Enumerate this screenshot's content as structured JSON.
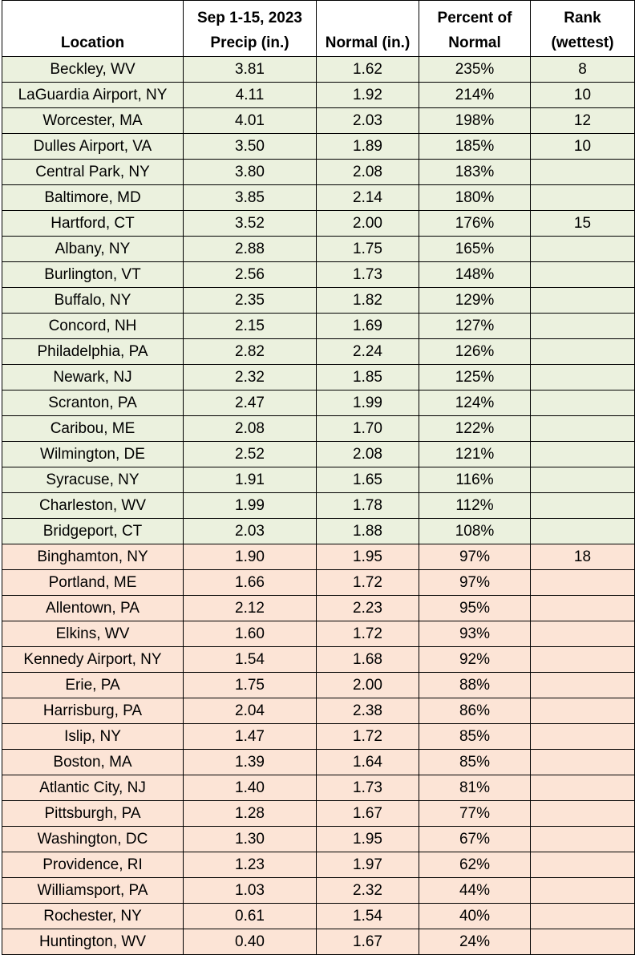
{
  "table": {
    "header": [
      [
        "Location"
      ],
      [
        "Sep 1-15, 2023",
        "Precip (in.)"
      ],
      [
        "Normal (in.)"
      ],
      [
        "Percent of",
        "Normal"
      ],
      [
        "Rank",
        "(wettest)"
      ]
    ],
    "rows": [
      [
        "Beckley, WV",
        "3.81",
        "1.62",
        "235%",
        "8"
      ],
      [
        "LaGuardia Airport, NY",
        "4.11",
        "1.92",
        "214%",
        "10"
      ],
      [
        "Worcester, MA",
        "4.01",
        "2.03",
        "198%",
        "12"
      ],
      [
        "Dulles Airport, VA",
        "3.50",
        "1.89",
        "185%",
        "10"
      ],
      [
        "Central Park, NY",
        "3.80",
        "2.08",
        "183%"
      ],
      [
        "Baltimore, MD",
        "3.85",
        "2.14",
        "180%"
      ],
      [
        "Hartford, CT",
        "3.52",
        "2.00",
        "176%",
        "15"
      ],
      [
        "Albany, NY",
        "2.88",
        "1.75",
        "165%"
      ],
      [
        "Burlington, VT",
        "2.56",
        "1.73",
        "148%"
      ],
      [
        "Buffalo, NY",
        "2.35",
        "1.82",
        "129%"
      ],
      [
        "Concord, NH",
        "2.15",
        "1.69",
        "127%"
      ],
      [
        "Philadelphia, PA",
        "2.82",
        "2.24",
        "126%"
      ],
      [
        "Newark, NJ",
        "2.32",
        "1.85",
        "125%"
      ],
      [
        "Scranton, PA",
        "2.47",
        "1.99",
        "124%"
      ],
      [
        "Caribou, ME",
        "2.08",
        "1.70",
        "122%"
      ],
      [
        "Wilmington, DE",
        "2.52",
        "2.08",
        "121%"
      ],
      [
        "Syracuse, NY",
        "1.91",
        "1.65",
        "116%"
      ],
      [
        "Charleston, WV",
        "1.99",
        "1.78",
        "112%"
      ],
      [
        "Bridgeport, CT",
        "2.03",
        "1.88",
        "108%"
      ],
      [
        "Binghamton, NY",
        "1.90",
        "1.95",
        "97%",
        "18"
      ],
      [
        "Portland, ME",
        "1.66",
        "1.72",
        "97%"
      ],
      [
        "Allentown, PA",
        "2.12",
        "2.23",
        "95%"
      ],
      [
        "Elkins, WV",
        "1.60",
        "1.72",
        "93%"
      ],
      [
        "Kennedy Airport, NY",
        "1.54",
        "1.68",
        "92%"
      ],
      [
        "Erie, PA",
        "1.75",
        "2.00",
        "88%"
      ],
      [
        "Harrisburg, PA",
        "2.04",
        "2.38",
        "86%"
      ],
      [
        "Islip, NY",
        "1.47",
        "1.72",
        "85%"
      ],
      [
        "Boston, MA",
        "1.39",
        "1.64",
        "85%"
      ],
      [
        "Atlantic City, NJ",
        "1.40",
        "1.73",
        "81%"
      ],
      [
        "Pittsburgh, PA",
        "1.28",
        "1.67",
        "77%"
      ],
      [
        "Washington, DC",
        "1.30",
        "1.95",
        "67%"
      ],
      [
        "Providence, RI",
        "1.23",
        "1.97",
        "62%"
      ],
      [
        "Williamsport, PA",
        "1.03",
        "2.32",
        "44%"
      ],
      [
        "Rochester, NY",
        "0.61",
        "1.54",
        "40%"
      ],
      [
        "Huntington, WV",
        "0.40",
        "1.67",
        "24%"
      ]
    ]
  }
}
